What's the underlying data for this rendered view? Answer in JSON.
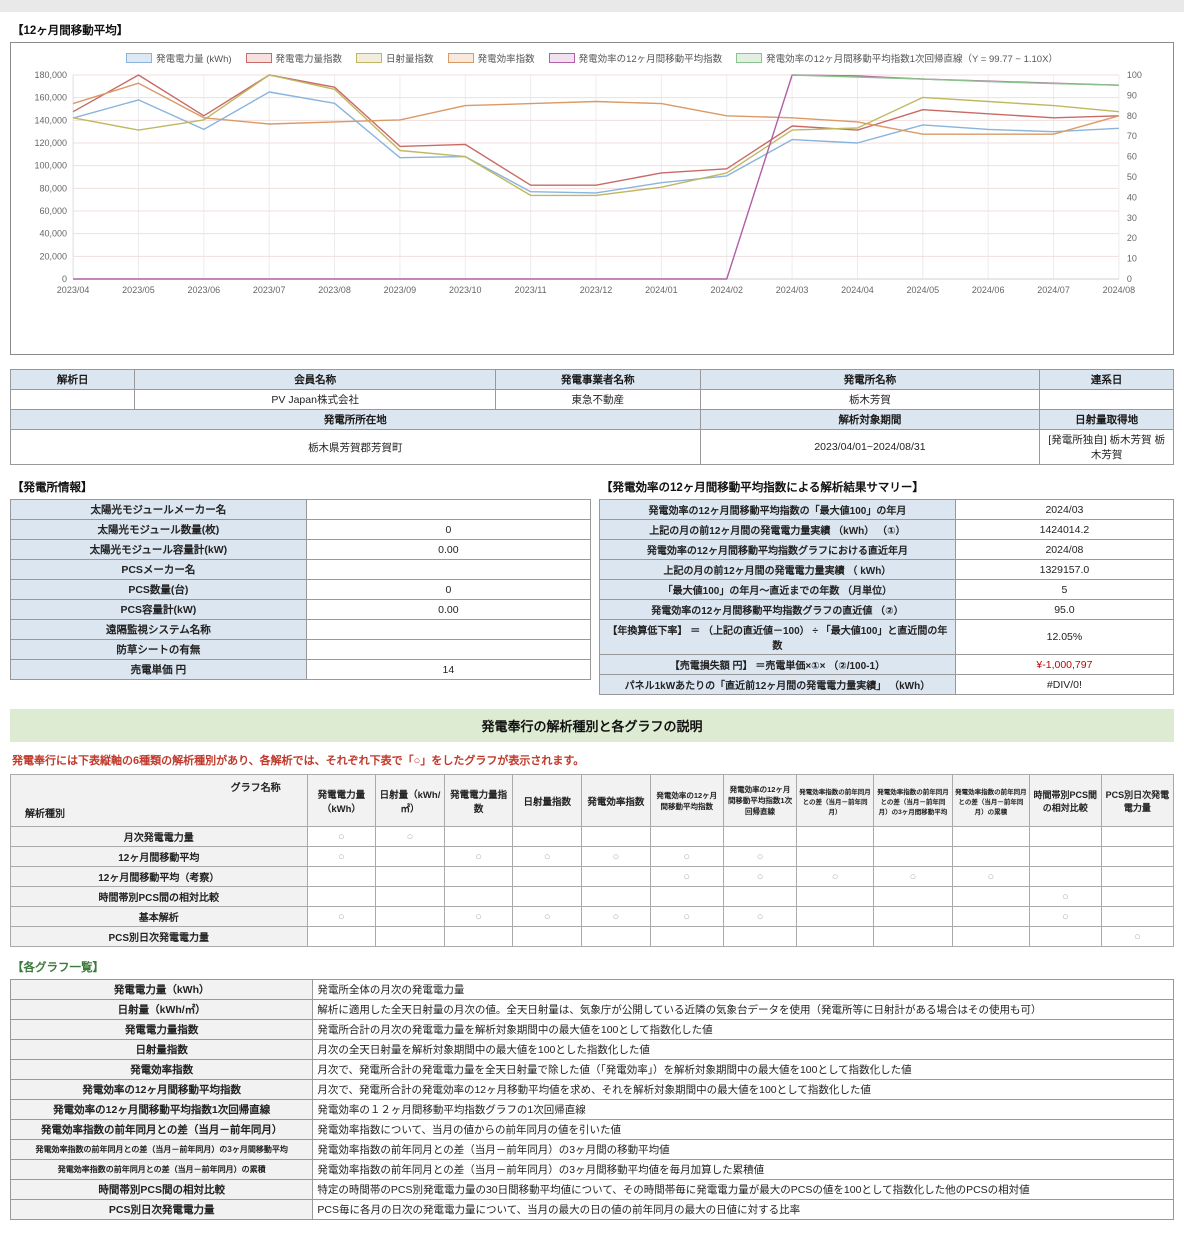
{
  "page": {
    "chart_section_title": "【12ヶ月間移動平均】",
    "plant_info_title": "【発電所情報】",
    "summary_title": "【発電効率の12ヶ月間移動平均指数による解析結果サマリー】",
    "banner": "発電奉行の解析種別と各グラフの説明",
    "note": "発電奉行には下表縦軸の6種類の解析種別があり、各解析では、それぞれ下表で「○」をしたグラフが表示されます。",
    "graph_list_title": "【各グラフ一覧】"
  },
  "chart_data": {
    "type": "line",
    "x": [
      "2023/04",
      "2023/05",
      "2023/06",
      "2023/07",
      "2023/08",
      "2023/09",
      "2023/10",
      "2023/11",
      "2023/12",
      "2024/01",
      "2024/02",
      "2024/03",
      "2024/04",
      "2024/05",
      "2024/06",
      "2024/07",
      "2024/08"
    ],
    "left_axis": {
      "min": 0,
      "max": 180000,
      "tick": 20000
    },
    "right_axis": {
      "min": 0,
      "max": 100,
      "tick": 10
    },
    "grid": true,
    "legend_position": "top",
    "series": [
      {
        "name": "発電電力量 (kWh)",
        "axis": "left",
        "color": "#8ab4dc",
        "fill": "#dce9f5",
        "values": [
          142000,
          158000,
          132000,
          165000,
          155000,
          107000,
          108000,
          77000,
          76000,
          85000,
          91000,
          123000,
          120000,
          136000,
          132000,
          130000,
          133000
        ]
      },
      {
        "name": "発電電力量指数",
        "axis": "right",
        "color": "#c96a66",
        "fill": "#f6e0e0",
        "values": [
          82,
          100,
          80,
          100,
          94,
          65,
          66,
          46,
          46,
          52,
          54,
          75,
          73,
          83,
          81,
          79,
          80
        ]
      },
      {
        "name": "日射量指数",
        "axis": "right",
        "color": "#bfb861",
        "fill": "#f1eedd",
        "values": [
          79,
          73,
          78,
          100,
          93,
          63,
          60,
          41,
          41,
          45,
          52,
          73,
          74,
          89,
          87,
          85,
          82
        ]
      },
      {
        "name": "発電効率指数",
        "axis": "right",
        "color": "#d99a66",
        "fill": "#f9e8dc",
        "values": [
          86,
          96,
          79,
          76,
          77,
          78,
          85,
          86,
          87,
          86,
          80,
          79,
          77,
          71,
          71,
          71,
          80
        ]
      },
      {
        "name": "発電効率の12ヶ月間移動平均指数",
        "axis": "right",
        "color": "#b05fa5",
        "fill": "#f0e2f0",
        "values": [
          0,
          0,
          0,
          0,
          0,
          0,
          0,
          0,
          0,
          0,
          0,
          100,
          99.5,
          98,
          97,
          96,
          95
        ]
      },
      {
        "name": "発電効率の12ヶ月間移動平均指数1次回帰直線",
        "legend": "発電効率の12ヶ月間移動平均指数1次回帰直線（Y = 99.77 − 1.10X）",
        "axis": "right",
        "color": "#8cc08c",
        "fill": "#e2f0e2",
        "values": [
          null,
          null,
          null,
          null,
          null,
          null,
          null,
          null,
          null,
          null,
          null,
          100,
          99,
          98,
          96.8,
          95.8,
          95
        ]
      }
    ],
    "title": "12ヶ月間移動平均",
    "regression_equation": "Y = 99.77 − 1.10X"
  },
  "info_table": {
    "headers1": [
      "解析日",
      "会員名称",
      "発電事業者名称",
      "発電所名称",
      "連系日"
    ],
    "values1": [
      "",
      "PV Japan株式会社",
      "東急不動産",
      "栃木芳賀",
      ""
    ],
    "headers2": [
      "発電所所在地",
      "解析対象期間",
      "日射量取得地"
    ],
    "values2": [
      "栃木県芳賀郡芳賀町",
      "2023/04/01~2024/08/31",
      "[発電所独自] 栃木芳賀 栃木芳賀"
    ]
  },
  "plant_info": {
    "rows": [
      {
        "label": "太陽光モジュールメーカー名",
        "value": ""
      },
      {
        "label": "太陽光モジュール数量(枚)",
        "value": "0"
      },
      {
        "label": "太陽光モジュール容量計(kW)",
        "value": "0.00"
      },
      {
        "label": "PCSメーカー名",
        "value": ""
      },
      {
        "label": "PCS数量(台)",
        "value": "0"
      },
      {
        "label": "PCS容量計(kW)",
        "value": "0.00"
      },
      {
        "label": "遠隔監視システム名称",
        "value": ""
      },
      {
        "label": "防草シートの有無",
        "value": ""
      },
      {
        "label": "売電単価 円",
        "value": "14"
      }
    ]
  },
  "summary": {
    "rows": [
      {
        "label": "発電効率の12ヶ月間移動平均指数の「最大値100」の年月",
        "value": "2024/03",
        "red": false
      },
      {
        "label": "上記の月の前12ヶ月間の発電電力量実績 （kWh） （①）",
        "value": "1424014.2",
        "red": false
      },
      {
        "label": "発電効率の12ヶ月間移動平均指数グラフにおける直近年月",
        "value": "2024/08",
        "red": false
      },
      {
        "label": "上記の月の前12ヶ月間の発電電力量実績 （ kWh）",
        "value": "1329157.0",
        "red": false
      },
      {
        "label": "「最大値100」の年月～直近までの年数 （月単位）",
        "value": "5",
        "red": false
      },
      {
        "label": "発電効率の12ヶ月間移動平均指数グラフの直近値 （②）",
        "value": "95.0",
        "red": false
      },
      {
        "label": "【年換算低下率】 ＝ （上記の直近値－100） ÷ 「最大値100」と直近間の年数",
        "value": "12.05%",
        "red": false
      },
      {
        "label": "【売電損失額 円】 ＝売電単価×①× （②/100-1）",
        "value": "¥-1,000,797",
        "red": true
      },
      {
        "label": "パネル1kWあたりの「直近前12ヶ月間の発電電力量実績」 （kWh）",
        "value": "#DIV/0!",
        "red": false
      }
    ]
  },
  "matrix": {
    "corner_top": "グラフ名称",
    "corner_bottom": "解析種別",
    "columns": [
      "発電電力量（kWh）",
      "日射量（kWh/㎡）",
      "発電電力量指数",
      "日射量指数",
      "発電効率指数",
      "発電効率の12ヶ月間移動平均指数",
      "発電効率の12ヶ月間移動平均指数1次回帰直線",
      "発電効率指数の前年同月との差（当月－前年同月）",
      "発電効率指数の前年同月との差（当月－前年同月）の3ヶ月間移動平均",
      "発電効率指数の前年同月との差（当月－前年同月）の累積",
      "時間帯別PCS間の相対比較",
      "PCS別日次発電電力量"
    ],
    "mark": "○",
    "rows": [
      {
        "label": "月次発電電力量",
        "cells": [
          "○",
          "○",
          "",
          "",
          "",
          "",
          "",
          "",
          "",
          "",
          "",
          ""
        ]
      },
      {
        "label": "12ヶ月間移動平均",
        "cells": [
          "○",
          "",
          "○",
          "○",
          "○",
          "○",
          "○",
          "",
          "",
          "",
          "",
          ""
        ]
      },
      {
        "label": "12ヶ月間移動平均（考察）",
        "cells": [
          "",
          "",
          "",
          "",
          "",
          "○",
          "○",
          "○",
          "○",
          "○",
          "",
          ""
        ]
      },
      {
        "label": "時間帯別PCS間の相対比較",
        "cells": [
          "",
          "",
          "",
          "",
          "",
          "",
          "",
          "",
          "",
          "",
          "○",
          ""
        ]
      },
      {
        "label": "基本解析",
        "cells": [
          "○",
          "",
          "○",
          "○",
          "○",
          "○",
          "○",
          "",
          "",
          "",
          "○",
          ""
        ]
      },
      {
        "label": "PCS別日次発電電力量",
        "cells": [
          "",
          "",
          "",
          "",
          "",
          "",
          "",
          "",
          "",
          "",
          "",
          "○"
        ]
      }
    ]
  },
  "graph_list": {
    "rows": [
      {
        "term": "発電電力量（kWh）",
        "desc": "発電所全体の月次の発電電力量",
        "small": false
      },
      {
        "term": "日射量（kWh/㎡）",
        "desc": "解析に適用した全天日射量の月次の値。全天日射量は、気象庁が公開している近隣の気象台データを使用（発電所等に日射計がある場合はその使用も可）",
        "small": false
      },
      {
        "term": "発電電力量指数",
        "desc": "発電所合計の月次の発電電力量を解析対象期間中の最大値を100として指数化した値",
        "small": false
      },
      {
        "term": "日射量指数",
        "desc": "月次の全天日射量を解析対象期間中の最大値を100とした指数化した値",
        "small": false
      },
      {
        "term": "発電効率指数",
        "desc": "月次で、発電所合計の発電電力量を全天日射量で除した値（「発電効率」）を解析対象期間中の最大値を100として指数化した値",
        "small": false
      },
      {
        "term": "発電効率の12ヶ月間移動平均指数",
        "desc": "月次で、発電所合計の発電効率の12ヶ月移動平均値を求め、それを解析対象期間中の最大値を100として指数化した値",
        "small": false
      },
      {
        "term": "発電効率の12ヶ月間移動平均指数1次回帰直線",
        "desc": "発電効率の１２ヶ月間移動平均指数グラフの1次回帰直線",
        "small": false
      },
      {
        "term": "発電効率指数の前年同月との差（当月－前年同月）",
        "desc": "発電効率指数について、当月の値からの前年同月の値を引いた値",
        "small": false
      },
      {
        "term": "発電効率指数の前年同月との差（当月－前年同月）の3ヶ月間移動平均",
        "desc": "発電効率指数の前年同月との差（当月－前年同月）の3ヶ月間の移動平均値",
        "small": true
      },
      {
        "term": "発電効率指数の前年同月との差（当月－前年同月）の累積",
        "desc": "発電効率指数の前年同月との差（当月－前年同月）の3ヶ月間移動平均値を毎月加算した累積値",
        "small": true
      },
      {
        "term": "時間帯別PCS間の相対比較",
        "desc": "特定の時間帯のPCS別発電電力量の30日間移動平均値について、その時間帯毎に発電電力量が最大のPCSの値を100として指数化した他のPCSの相対値",
        "small": false
      },
      {
        "term": "PCS別日次発電電力量",
        "desc": "PCS毎に各月の日次の発電電力量について、当月の最大の日の値の前年同月の最大の日値に対する比率",
        "small": false
      }
    ]
  }
}
